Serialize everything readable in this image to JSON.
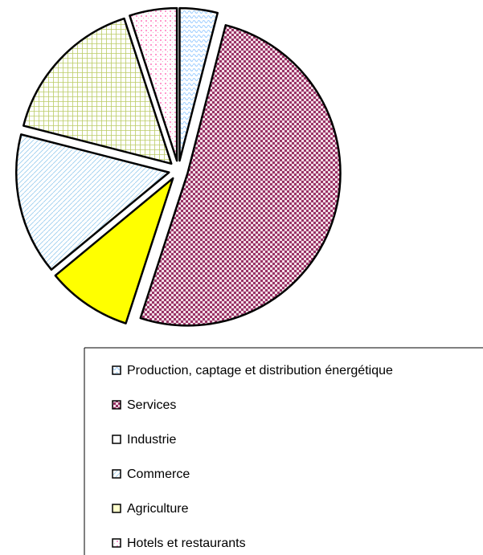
{
  "chart_data": {
    "type": "pie",
    "categories": [
      "Production, captage et distribution énergétique",
      "Services",
      "Industrie",
      "Commerce",
      "Agriculture",
      "Hotels et restaurants"
    ],
    "values": [
      4,
      51,
      9,
      15,
      16,
      5
    ],
    "colors": [
      "#99ccff",
      "#993366",
      "#ffff00",
      "#ccecff",
      "#ffffcc",
      "#ff99cc"
    ]
  }
}
